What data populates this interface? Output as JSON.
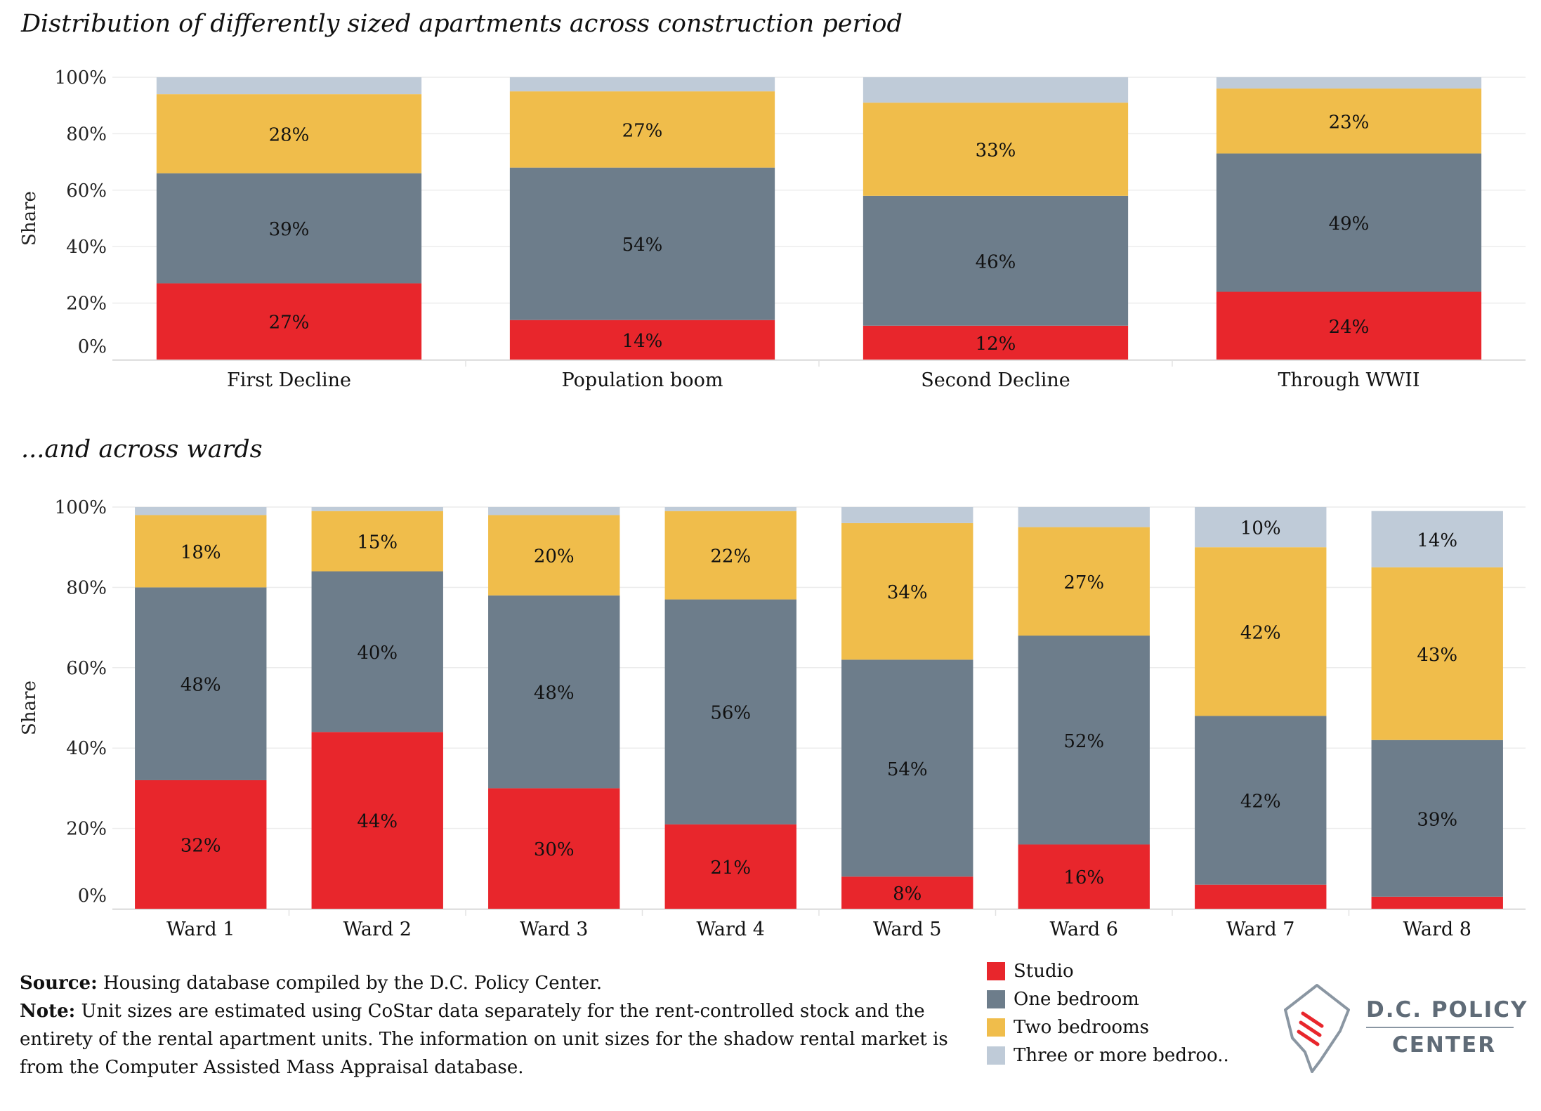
{
  "titles": {
    "top": "Distribution of differently sized apartments across construction period",
    "bottom": "...and across wards"
  },
  "colors": {
    "studio": "#e8262c",
    "one_bedroom": "#6d7d8b",
    "two_bedrooms": "#f0bd4b",
    "three_plus": "#bfcbd8"
  },
  "chart_data": [
    {
      "type": "bar",
      "stacked": true,
      "title": "Distribution of differently sized apartments across construction period",
      "ylabel": "Share",
      "ylim": [
        0,
        100
      ],
      "yticks": [
        "0%",
        "20%",
        "40%",
        "60%",
        "80%",
        "100%"
      ],
      "categories": [
        "First Decline",
        "Population boom",
        "Second Decline",
        "Through WWII"
      ],
      "series": [
        {
          "name": "Studio",
          "values": [
            27,
            14,
            12,
            24
          ],
          "labels": [
            "27%",
            "14%",
            "12%",
            "24%"
          ]
        },
        {
          "name": "One bedroom",
          "values": [
            39,
            54,
            46,
            49
          ],
          "labels": [
            "39%",
            "54%",
            "46%",
            "49%"
          ]
        },
        {
          "name": "Two bedrooms",
          "values": [
            28,
            27,
            33,
            23
          ],
          "labels": [
            "28%",
            "27%",
            "33%",
            "23%"
          ]
        },
        {
          "name": "Three or more bedroo..",
          "values": [
            6,
            5,
            9,
            4
          ],
          "labels": [
            "",
            "",
            "",
            ""
          ]
        }
      ]
    },
    {
      "type": "bar",
      "stacked": true,
      "title": "...and across wards",
      "ylabel": "Share",
      "ylim": [
        0,
        100
      ],
      "yticks": [
        "0%",
        "20%",
        "40%",
        "60%",
        "80%",
        "100%"
      ],
      "categories": [
        "Ward 1",
        "Ward 2",
        "Ward 3",
        "Ward 4",
        "Ward 5",
        "Ward 6",
        "Ward 7",
        "Ward 8"
      ],
      "series": [
        {
          "name": "Studio",
          "values": [
            32,
            44,
            30,
            21,
            8,
            16,
            6,
            3
          ],
          "labels": [
            "32%",
            "44%",
            "30%",
            "21%",
            "8%",
            "16%",
            "",
            ""
          ]
        },
        {
          "name": "One bedroom",
          "values": [
            48,
            40,
            48,
            56,
            54,
            52,
            42,
            39
          ],
          "labels": [
            "48%",
            "40%",
            "48%",
            "56%",
            "54%",
            "52%",
            "42%",
            "39%"
          ]
        },
        {
          "name": "Two bedrooms",
          "values": [
            18,
            15,
            20,
            22,
            34,
            27,
            42,
            43
          ],
          "labels": [
            "18%",
            "15%",
            "20%",
            "22%",
            "34%",
            "27%",
            "42%",
            "43%"
          ]
        },
        {
          "name": "Three or more bedroo..",
          "values": [
            2,
            1,
            2,
            1,
            4,
            5,
            10,
            14
          ],
          "labels": [
            "",
            "",
            "",
            "",
            "",
            "",
            "10%",
            "14%"
          ]
        }
      ]
    }
  ],
  "legend": [
    {
      "label": "Studio",
      "color": "#e8262c"
    },
    {
      "label": "One bedroom",
      "color": "#6d7d8b"
    },
    {
      "label": "Two bedrooms",
      "color": "#f0bd4b"
    },
    {
      "label": "Three or more bedroo..",
      "color": "#bfcbd8"
    }
  ],
  "footer": {
    "source_label": "Source:",
    "source_text": " Housing database compiled by the D.C. Policy Center.",
    "note_label": "Note:",
    "note_text": " Unit sizes are estimated using CoStar data separately for the rent-controlled stock and the entirety of the rental apartment units. The information on unit sizes for the shadow rental market is from the Computer Assisted Mass Appraisal database."
  },
  "logo": {
    "line1": "D.C. POLICY",
    "line2": "CENTER"
  }
}
